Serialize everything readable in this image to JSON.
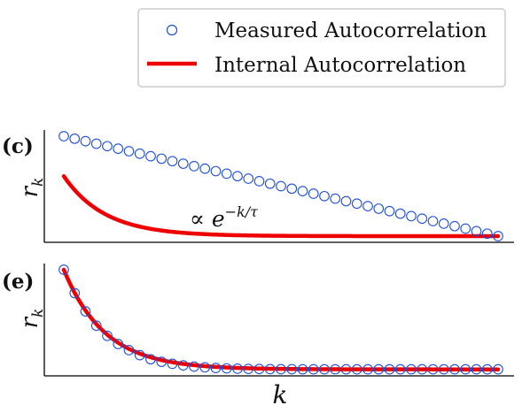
{
  "colors": {
    "measured": "#1f4fd6",
    "internal": "#ee0000",
    "axis": "#000000",
    "legend_border": "#cccccc"
  },
  "legend": {
    "position": "top-right",
    "items": [
      {
        "label": "Measured Autocorrelation",
        "marker": "open-circle"
      },
      {
        "label": "Internal Autocorrelation",
        "marker": "line"
      }
    ]
  },
  "chart_data": [
    {
      "type": "scatter+line",
      "panel_label": "(c)",
      "ylabel_base": "r",
      "ylabel_sub": "k",
      "xlabel": "",
      "grid": false,
      "annotation": {
        "prefix": "∝ ",
        "base": "e",
        "sup": "−k/τ"
      },
      "x": [
        1,
        2,
        3,
        4,
        5,
        6,
        7,
        8,
        9,
        10,
        11,
        12,
        13,
        14,
        15,
        16,
        17,
        18,
        19,
        20,
        21,
        22,
        23,
        24,
        25,
        26,
        27,
        28,
        29,
        30,
        31,
        32,
        33,
        34,
        35,
        36,
        37,
        38,
        39,
        40,
        41
      ],
      "series": [
        {
          "name": "Measured Autocorrelation",
          "style": "markers",
          "values": [
            1.0,
            0.975,
            0.95,
            0.925,
            0.9,
            0.875,
            0.85,
            0.825,
            0.8,
            0.775,
            0.75,
            0.725,
            0.7,
            0.675,
            0.65,
            0.625,
            0.6,
            0.575,
            0.55,
            0.525,
            0.5,
            0.475,
            0.45,
            0.425,
            0.4,
            0.375,
            0.35,
            0.325,
            0.3,
            0.275,
            0.25,
            0.225,
            0.2,
            0.175,
            0.15,
            0.125,
            0.1,
            0.075,
            0.05,
            0.025,
            0.0
          ]
        },
        {
          "name": "Internal Autocorrelation",
          "style": "line",
          "function": "exponential",
          "amplitude": 0.6,
          "tau": 3.8,
          "offset": 0.0
        }
      ],
      "xlim": [
        0,
        42
      ],
      "ylim": [
        -0.05,
        1.05
      ]
    },
    {
      "type": "scatter+line",
      "panel_label": "(e)",
      "ylabel_base": "r",
      "ylabel_sub": "k",
      "xlabel": "k",
      "grid": false,
      "x": [
        1,
        2,
        3,
        4,
        5,
        6,
        7,
        8,
        9,
        10,
        11,
        12,
        13,
        14,
        15,
        16,
        17,
        18,
        19,
        20,
        21,
        22,
        23,
        24,
        25,
        26,
        27,
        28,
        29,
        30,
        31,
        32,
        33,
        34,
        35,
        36,
        37,
        38,
        39,
        40,
        41
      ],
      "series": [
        {
          "name": "Measured Autocorrelation",
          "style": "markers",
          "values": [
            1.0,
            0.77,
            0.59,
            0.45,
            0.35,
            0.27,
            0.21,
            0.16,
            0.12,
            0.095,
            0.075,
            0.06,
            0.048,
            0.04,
            0.034,
            0.03,
            0.027,
            0.025,
            0.024,
            0.023,
            0.022,
            0.022,
            0.021,
            0.021,
            0.021,
            0.021,
            0.021,
            0.021,
            0.021,
            0.021,
            0.021,
            0.021,
            0.021,
            0.021,
            0.021,
            0.021,
            0.021,
            0.021,
            0.021,
            0.021,
            0.021
          ]
        },
        {
          "name": "Internal Autocorrelation",
          "style": "line",
          "function": "exponential",
          "amplitude": 0.98,
          "tau": 3.8,
          "offset": 0.02
        }
      ],
      "xlim": [
        0,
        42
      ],
      "ylim": [
        -0.05,
        1.05
      ]
    }
  ]
}
